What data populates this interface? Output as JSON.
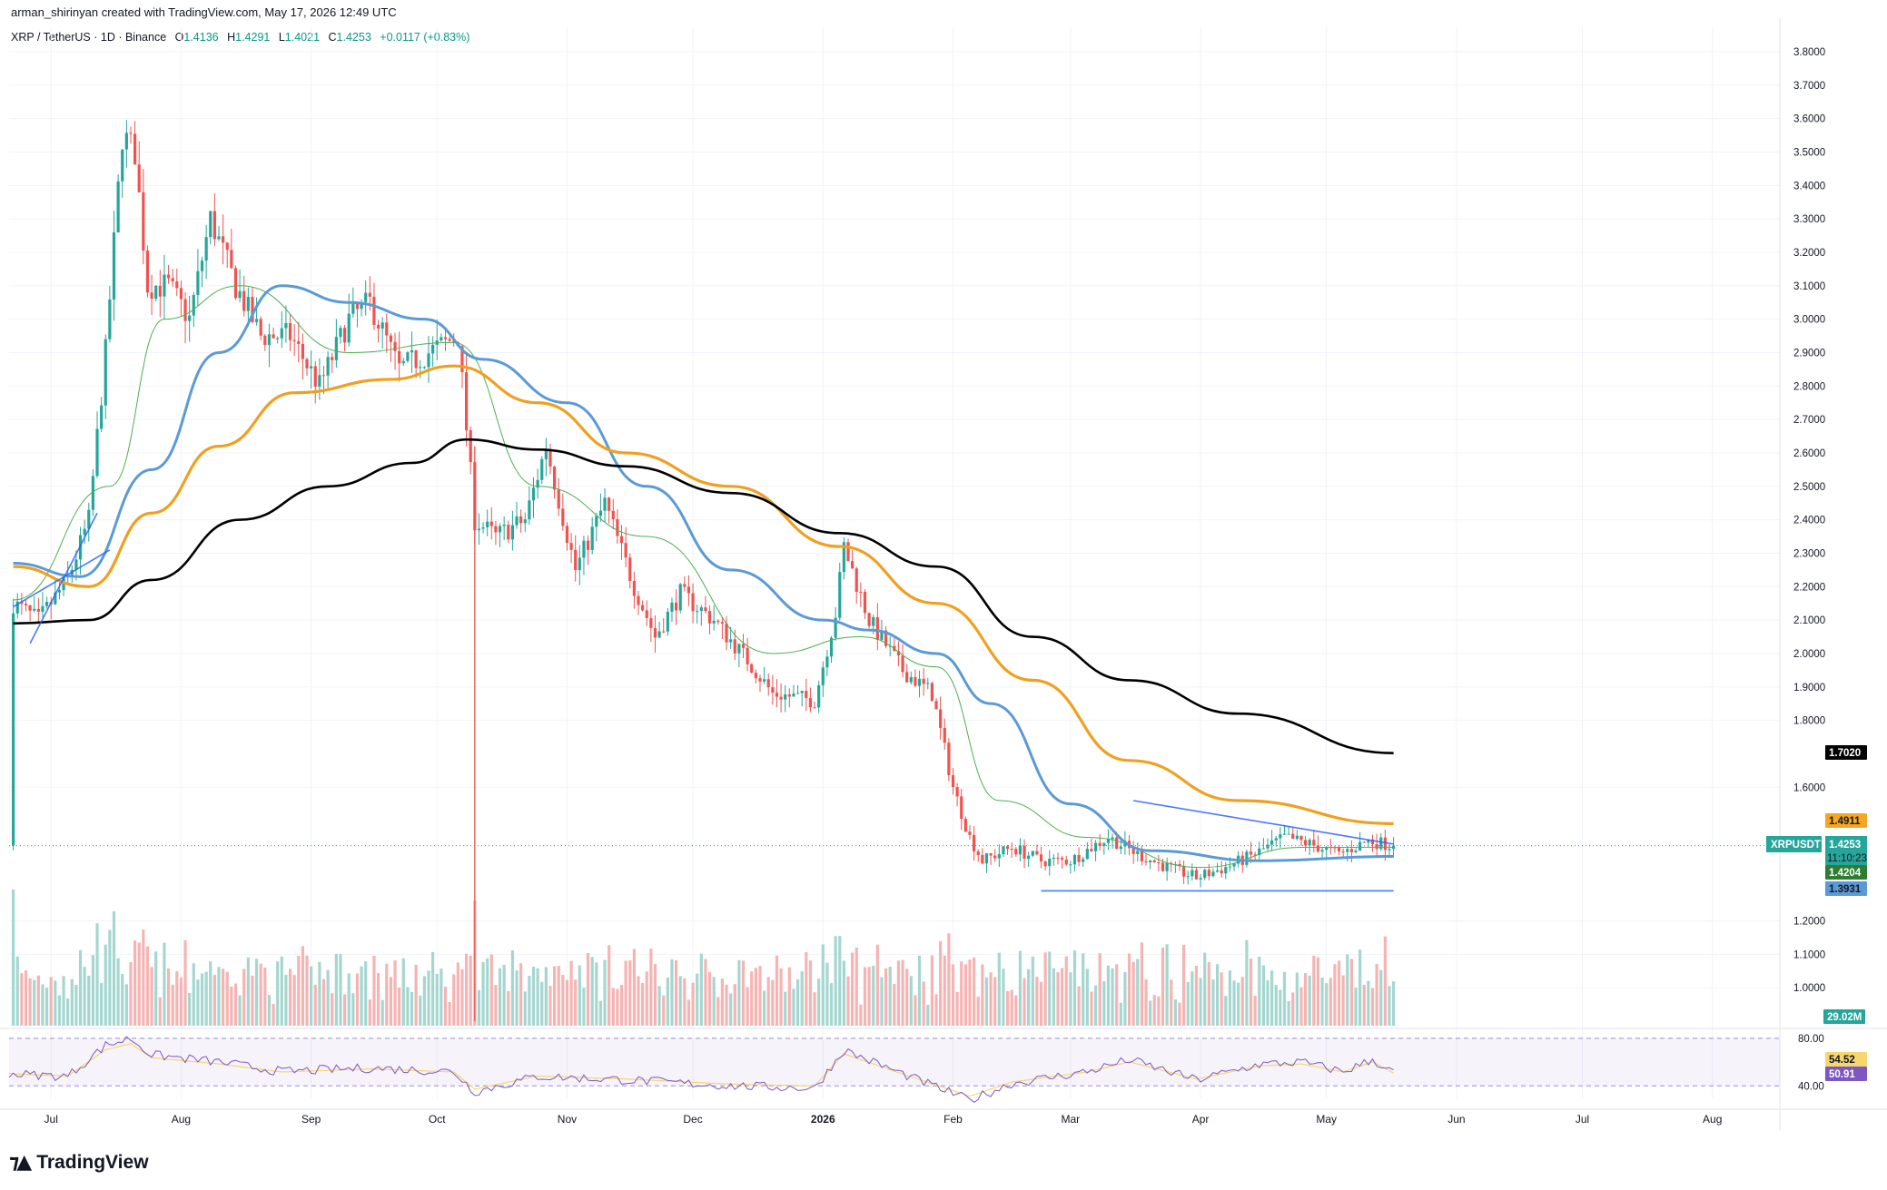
{
  "header": {
    "text": "arman_shirinyan created with TradingView.com, May 17, 2026 12:49 UTC"
  },
  "legend": {
    "symbol": "XRP / TetherUS · 1D · Binance",
    "open_label": "O",
    "open": "1.4136",
    "high_label": "H",
    "high": "1.4291",
    "low_label": "L",
    "low": "1.4021",
    "close_label": "C",
    "close": "1.4253",
    "change": "+0.0117 (+0.83%)"
  },
  "footer": {
    "brand": "TradingView",
    "logo_icon": "tradingview-logo-icon"
  },
  "colors": {
    "up": "#26a69a",
    "down": "#ef5350",
    "ma_fast": "#4caf50",
    "ma_mid": "#5b9bd5",
    "ma_slow": "#f0a020",
    "ma_long": "#000000",
    "rsi": "#7e57c2",
    "rsi_ma": "#f5d76e"
  },
  "chart_data": {
    "type": "candlestick",
    "symbol": "XRPUSDT",
    "timeframe": "1D",
    "y_range": [
      0.88,
      3.84
    ],
    "y_ticks": [
      "3.8000",
      "3.7000",
      "3.6000",
      "3.5000",
      "3.4000",
      "3.3000",
      "3.2000",
      "3.1000",
      "3.0000",
      "2.9000",
      "2.8000",
      "2.7000",
      "2.6000",
      "2.5000",
      "2.4000",
      "2.3000",
      "2.2000",
      "2.1000",
      "2.0000",
      "1.9000",
      "1.8000",
      "1.6000",
      "1.2000",
      "1.1000",
      "1.0000"
    ],
    "x_ticks": [
      "Jul",
      "Aug",
      "Sep",
      "Oct",
      "Nov",
      "Dec",
      "2026",
      "Feb",
      "Mar",
      "Apr",
      "May",
      "Jun",
      "Jul",
      "Aug"
    ],
    "price_points": [
      [
        "2025-06-22",
        2.15
      ],
      [
        "2025-06-28",
        2.1
      ],
      [
        "2025-07-05",
        2.22
      ],
      [
        "2025-07-10",
        2.4
      ],
      [
        "2025-07-14",
        2.9
      ],
      [
        "2025-07-18",
        3.55
      ],
      [
        "2025-07-21",
        3.5
      ],
      [
        "2025-07-24",
        3.1
      ],
      [
        "2025-07-29",
        3.1
      ],
      [
        "2025-08-03",
        3.0
      ],
      [
        "2025-08-08",
        3.3
      ],
      [
        "2025-08-14",
        3.1
      ],
      [
        "2025-08-20",
        2.95
      ],
      [
        "2025-08-27",
        2.95
      ],
      [
        "2025-09-03",
        2.8
      ],
      [
        "2025-09-10",
        3.0
      ],
      [
        "2025-09-15",
        3.05
      ],
      [
        "2025-09-22",
        2.85
      ],
      [
        "2025-09-29",
        2.9
      ],
      [
        "2025-10-06",
        2.95
      ],
      [
        "2025-10-10",
        2.4
      ],
      [
        "2025-10-15",
        2.35
      ],
      [
        "2025-10-22",
        2.4
      ],
      [
        "2025-10-27",
        2.62
      ],
      [
        "2025-11-03",
        2.25
      ],
      [
        "2025-11-10",
        2.45
      ],
      [
        "2025-11-17",
        2.2
      ],
      [
        "2025-11-22",
        2.05
      ],
      [
        "2025-11-28",
        2.18
      ],
      [
        "2025-12-06",
        2.1
      ],
      [
        "2025-12-14",
        1.98
      ],
      [
        "2025-12-20",
        1.88
      ],
      [
        "2025-12-30",
        1.86
      ],
      [
        "2026-01-04",
        2.12
      ],
      [
        "2026-01-06",
        2.32
      ],
      [
        "2026-01-12",
        2.1
      ],
      [
        "2026-01-20",
        1.95
      ],
      [
        "2026-01-27",
        1.88
      ],
      [
        "2026-02-01",
        1.6
      ],
      [
        "2026-02-05",
        1.45
      ],
      [
        "2026-02-08",
        1.38
      ],
      [
        "2026-02-15",
        1.42
      ],
      [
        "2026-02-22",
        1.38
      ],
      [
        "2026-03-01",
        1.38
      ],
      [
        "2026-03-06",
        1.42
      ],
      [
        "2026-03-10",
        1.45
      ],
      [
        "2026-03-17",
        1.4
      ],
      [
        "2026-03-24",
        1.36
      ],
      [
        "2026-03-31",
        1.33
      ],
      [
        "2026-04-07",
        1.36
      ],
      [
        "2026-04-14",
        1.4
      ],
      [
        "2026-04-21",
        1.45
      ],
      [
        "2026-04-27",
        1.43
      ],
      [
        "2026-05-04",
        1.4
      ],
      [
        "2026-05-11",
        1.44
      ],
      [
        "2026-05-17",
        1.4253
      ]
    ],
    "moving_averages": [
      {
        "color": "#4caf50",
        "points": [
          [
            "2025-06-22",
            2.16
          ],
          [
            "2025-07-15",
            2.5
          ],
          [
            "2025-07-28",
            3.0
          ],
          [
            "2025-08-15",
            3.1
          ],
          [
            "2025-09-10",
            2.9
          ],
          [
            "2025-10-05",
            2.93
          ],
          [
            "2025-10-25",
            2.5
          ],
          [
            "2025-11-20",
            2.35
          ],
          [
            "2025-12-20",
            2.0
          ],
          [
            "2026-01-10",
            2.05
          ],
          [
            "2026-01-28",
            1.96
          ],
          [
            "2026-02-12",
            1.56
          ],
          [
            "2026-03-05",
            1.45
          ],
          [
            "2026-04-01",
            1.36
          ],
          [
            "2026-04-25",
            1.42
          ],
          [
            "2026-05-17",
            1.4204
          ]
        ]
      },
      {
        "color": "#5b9bd5",
        "points": [
          [
            "2025-06-22",
            2.27
          ],
          [
            "2025-07-08",
            2.23
          ],
          [
            "2025-07-25",
            2.55
          ],
          [
            "2025-08-10",
            2.9
          ],
          [
            "2025-08-25",
            3.1
          ],
          [
            "2025-09-10",
            3.05
          ],
          [
            "2025-09-28",
            3.0
          ],
          [
            "2025-10-12",
            2.88
          ],
          [
            "2025-11-01",
            2.75
          ],
          [
            "2025-11-20",
            2.5
          ],
          [
            "2025-12-10",
            2.25
          ],
          [
            "2026-01-01",
            2.1
          ],
          [
            "2026-01-12",
            2.07
          ],
          [
            "2026-01-28",
            2.0
          ],
          [
            "2026-02-10",
            1.85
          ],
          [
            "2026-03-01",
            1.55
          ],
          [
            "2026-03-20",
            1.41
          ],
          [
            "2026-04-15",
            1.38
          ],
          [
            "2026-05-17",
            1.3931
          ]
        ]
      },
      {
        "color": "#f0a020",
        "points": [
          [
            "2025-06-22",
            2.26
          ],
          [
            "2025-07-10",
            2.2
          ],
          [
            "2025-07-25",
            2.42
          ],
          [
            "2025-08-10",
            2.62
          ],
          [
            "2025-08-28",
            2.78
          ],
          [
            "2025-09-20",
            2.82
          ],
          [
            "2025-10-05",
            2.86
          ],
          [
            "2025-10-25",
            2.75
          ],
          [
            "2025-11-15",
            2.6
          ],
          [
            "2025-12-10",
            2.5
          ],
          [
            "2026-01-05",
            2.32
          ],
          [
            "2026-01-28",
            2.15
          ],
          [
            "2026-02-20",
            1.92
          ],
          [
            "2026-03-15",
            1.68
          ],
          [
            "2026-04-10",
            1.56
          ],
          [
            "2026-05-17",
            1.4911
          ]
        ]
      },
      {
        "color": "#000000",
        "points": [
          [
            "2025-06-22",
            2.09
          ],
          [
            "2025-07-10",
            2.1
          ],
          [
            "2025-07-25",
            2.22
          ],
          [
            "2025-08-15",
            2.4
          ],
          [
            "2025-09-05",
            2.5
          ],
          [
            "2025-09-25",
            2.57
          ],
          [
            "2025-10-08",
            2.64
          ],
          [
            "2025-10-25",
            2.61
          ],
          [
            "2025-11-15",
            2.56
          ],
          [
            "2025-12-10",
            2.48
          ],
          [
            "2026-01-05",
            2.36
          ],
          [
            "2026-01-28",
            2.26
          ],
          [
            "2026-02-20",
            2.05
          ],
          [
            "2026-03-15",
            1.92
          ],
          [
            "2026-04-10",
            1.82
          ],
          [
            "2026-05-17",
            1.702
          ]
        ]
      }
    ],
    "trendlines": [
      {
        "points": [
          [
            "2025-06-26",
            2.03
          ],
          [
            "2025-07-12",
            2.42
          ]
        ]
      },
      {
        "points": [
          [
            "2025-06-22",
            2.14
          ],
          [
            "2025-07-15",
            2.31
          ]
        ]
      },
      {
        "points": [
          [
            "2026-03-16",
            1.56
          ],
          [
            "2026-05-17",
            1.43
          ]
        ]
      },
      {
        "points": [
          [
            "2026-02-22",
            1.29
          ],
          [
            "2026-05-17",
            1.29
          ]
        ]
      }
    ],
    "volume_last": "29.02M",
    "price_badges": [
      {
        "label": "1.7020",
        "value": 1.702,
        "bg": "#000000",
        "fg": "#ffffff"
      },
      {
        "label": "1.4911",
        "value": 1.4911,
        "bg": "#f5a623",
        "fg": "#131722"
      },
      {
        "label": "1.4253",
        "value": 1.4253,
        "bg": "#26a69a",
        "fg": "#ffffff",
        "symbol": "XRPUSDT",
        "countdown": "11:10:23"
      },
      {
        "label": "1.4204",
        "value": 1.4204,
        "bg": "#2e7d32",
        "fg": "#ffffff"
      },
      {
        "label": "1.3931",
        "value": 1.3931,
        "bg": "#5b9bd5",
        "fg": "#131722"
      }
    ],
    "rsi": {
      "upper_label": "80.00",
      "lower_label": "40.00",
      "ma_value": "54.52",
      "value": "50.91",
      "points": [
        [
          "2025-06-22",
          50
        ],
        [
          "2025-07-05",
          48
        ],
        [
          "2025-07-14",
          74
        ],
        [
          "2025-07-20",
          80
        ],
        [
          "2025-07-25",
          66
        ],
        [
          "2025-08-10",
          60
        ],
        [
          "2025-08-25",
          52
        ],
        [
          "2025-09-15",
          55
        ],
        [
          "2025-10-05",
          52
        ],
        [
          "2025-10-10",
          35
        ],
        [
          "2025-10-25",
          48
        ],
        [
          "2025-11-15",
          45
        ],
        [
          "2025-12-10",
          40
        ],
        [
          "2025-12-30",
          38
        ],
        [
          "2026-01-06",
          70
        ],
        [
          "2026-01-20",
          50
        ],
        [
          "2026-02-05",
          28
        ],
        [
          "2026-02-15",
          42
        ],
        [
          "2026-03-05",
          52
        ],
        [
          "2026-03-15",
          62
        ],
        [
          "2026-03-31",
          45
        ],
        [
          "2026-04-15",
          58
        ],
        [
          "2026-04-25",
          60
        ],
        [
          "2026-05-05",
          52
        ],
        [
          "2026-05-12",
          62
        ],
        [
          "2026-05-17",
          50.91
        ]
      ]
    }
  }
}
